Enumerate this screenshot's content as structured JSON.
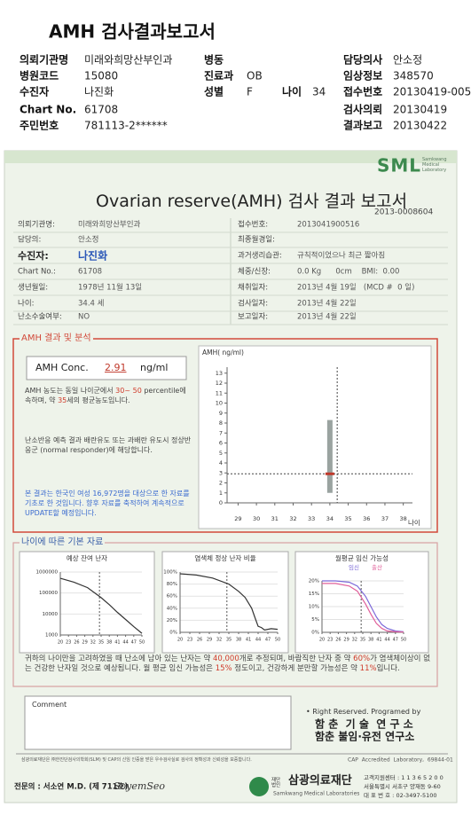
{
  "header": {
    "title": "AMH 검사결과보고서",
    "fields": [
      {
        "label": "의뢰기관명",
        "value": "미래와희망산부인과"
      },
      {
        "label": "병동"
      },
      {
        "label": "담당의사",
        "value": "안소정"
      },
      {
        "label": "병원코드",
        "value": "15080"
      },
      {
        "label": "진료과",
        "value": "OB"
      },
      {
        "label": "임상정보",
        "value": "348570"
      },
      {
        "label": "수진자",
        "value": "나진화"
      },
      {
        "label": "성별",
        "value": "F"
      },
      {
        "label": "나이",
        "value": "34"
      },
      {
        "label": "접수번호",
        "value": "20130419-005"
      },
      {
        "label": "Chart No.",
        "value": "61708"
      },
      {
        "label": "검사의뢰",
        "value": "20130419"
      },
      {
        "label": "주민번호",
        "value": "781113-2******"
      },
      {
        "label": "결과보고",
        "value": "20130422"
      }
    ]
  },
  "report": {
    "logo": "SML",
    "logo_sub": "Samkwang Medical Laboratory",
    "title": "Ovarian reserve(AMH) 검사 결과 보고서",
    "doc_no": "2013-0008604",
    "info_left": [
      {
        "label": "의뢰기관명:",
        "value": "미래와희망산부인과"
      },
      {
        "label": "담당의:",
        "value": "안소정"
      },
      {
        "label": "수진자:",
        "value": "나진화"
      },
      {
        "label": "Chart No.:",
        "value": "61708"
      },
      {
        "label": "생년월일:",
        "value": "1978년 11월 13일"
      },
      {
        "label": "나이:",
        "value": "34.4 세"
      },
      {
        "label": "난소수술여부:",
        "value": "NO"
      }
    ],
    "info_right": [
      {
        "label": "접수번호:",
        "value": "2013041900516"
      },
      {
        "label": "최종월경일:"
      },
      {
        "label": "과거생리습관:",
        "value": "규칙적이었으나 최근 짧아짐"
      },
      {
        "label": "체중/신장:",
        "value": "0.0 Kg      0cm    BMI:  0.00"
      },
      {
        "label": "채취일자:",
        "value": "2013년 4월 19일   (MCD #  0 일)"
      },
      {
        "label": "검사일자:",
        "value": "2013년 4월 22일"
      },
      {
        "label": "보고일자:",
        "value": "2013년 4월 22일"
      }
    ]
  },
  "amh": {
    "heading": "AMH 결과 및 분석",
    "conc_label": "AMH Conc.",
    "conc_value": "2.91",
    "conc_unit": "ng/ml",
    "text1": [
      "AMH 농도는 동일 나이군에서 ",
      "30~ 50",
      " percentile에 속하며, 약 ",
      "35",
      "세의 평균농도입니다."
    ],
    "text2": "난소반응 예측 결과 배란유도 또는 과배란 유도시 정상반응군 (normal responder)에 해당합니다.",
    "text3": "본 결과는 한국인 여성 16,972명을 대상으로 한 자료를 기초로 한 것입니다. 향후 자료를 축적하여 계속적으로 UPDATE할 예정입니다.",
    "chart": {
      "ylabel": "AMH( ng/ml)",
      "xlabel": "나이",
      "xlim": [
        28.4,
        38.5
      ],
      "xticks": [
        29,
        30,
        31,
        32,
        33,
        34,
        35,
        36,
        37,
        38
      ],
      "ylim": [
        0,
        13.6
      ],
      "yticks": [
        0,
        1,
        2,
        3,
        4,
        5,
        6,
        7,
        8,
        9,
        10,
        11,
        12,
        13
      ],
      "bar": {
        "x": 34,
        "low": 1.0,
        "high": 8.3,
        "color": "#9aa3a0"
      },
      "point": {
        "x": 34.4,
        "y": 2.91,
        "color": "#c0392b"
      }
    }
  },
  "basic": {
    "heading": "나이에 따른 기본 자료",
    "charts": [
      {
        "title": "예상 잔여 난자",
        "log_y": true,
        "xlim": [
          20,
          50
        ],
        "xticks": [
          20,
          23,
          26,
          29,
          32,
          35,
          38,
          41,
          44,
          47,
          50
        ],
        "ylim": [
          1000,
          1000000
        ],
        "yticks": [
          1000,
          10000,
          100000,
          1000000
        ],
        "marker_x": 34.4,
        "grid": true,
        "x": [
          20,
          25,
          30,
          35,
          38,
          41,
          44,
          47,
          50
        ],
        "series": [
          {
            "color": "#333333",
            "values": [
              500000,
              330000,
              180000,
              60000,
              28000,
              12000,
              5500,
              2500,
              1200
            ]
          }
        ]
      },
      {
        "title": "염색체 정상 난자 비율",
        "xlim": [
          20,
          50
        ],
        "xticks": [
          20,
          23,
          26,
          29,
          32,
          35,
          38,
          41,
          44,
          47,
          50
        ],
        "ylim": [
          0,
          100
        ],
        "yticks": [
          {
            "value": 0,
            "label": "0%"
          },
          {
            "value": 20,
            "label": "20%"
          },
          {
            "value": 40,
            "label": "40%"
          },
          {
            "value": 60,
            "label": "60%"
          },
          {
            "value": 80,
            "label": "80%"
          },
          {
            "value": 100,
            "label": "100%"
          }
        ],
        "marker_x": 34.4,
        "grid": true,
        "x": [
          20,
          25,
          30,
          35,
          38,
          40,
          42,
          43,
          44,
          45,
          46,
          48,
          50
        ],
        "series": [
          {
            "color": "#333333",
            "values": [
              97,
              95,
              90,
              80,
              68,
              58,
              40,
              25,
              10,
              8,
              4,
              6,
              5
            ]
          }
        ]
      },
      {
        "title": "월평균 임신 가능성",
        "xlim": [
          20,
          50
        ],
        "xticks": [
          20,
          23,
          26,
          29,
          32,
          35,
          38,
          41,
          44,
          47,
          50
        ],
        "ylim": [
          0,
          20
        ],
        "yticks": [
          {
            "value": 0,
            "label": "0%"
          },
          {
            "value": 5,
            "label": "5%"
          },
          {
            "value": 10,
            "label": "10%"
          },
          {
            "value": 15,
            "label": "15%"
          },
          {
            "value": 20,
            "label": "20%"
          }
        ],
        "marker_x": 34.4,
        "grid": true,
        "x": [
          20,
          25,
          30,
          33,
          36,
          38,
          40,
          42,
          44,
          47,
          50
        ],
        "series": [
          {
            "name": "임신",
            "color": "#7b68d8",
            "values": [
              20,
              20,
              19.5,
              18,
              14,
              10,
              6,
              3,
              1.5,
              0.5,
              0.2
            ]
          },
          {
            "name": "출산",
            "color": "#e0609a",
            "values": [
              19,
              19,
              18,
              16,
              11,
              7,
              3.5,
              1.5,
              0.5,
              0.2,
              0.1
            ]
          }
        ]
      }
    ],
    "summary": [
      "귀하의 나이만을 고려하였을 때 난소에 남아 있는 난자는 약 ",
      "40,000",
      "개로 추정되며, 바람직한 난자 중 약 ",
      "60%",
      "가 염색체이상이 없는 건강한 난자일 것으로 예상됩니다. 월 평균 임신 가능성은 ",
      "15%",
      " 정도이고, 건강하게 분만할 가능성은 약 ",
      "11%",
      "입니다."
    ]
  },
  "comment": {
    "label": "Comment"
  },
  "credits": {
    "line1": "• Right Reserved. Programed by",
    "line2": "함 춘  기 술  연 구 소",
    "line3": "함춘 불임·유전 연구소"
  },
  "footer": {
    "cert": "삼광의료재단은 ㈜한진단검사의학회(SLM) 및 CAP의 신임 인증을 받은 우수검사실로 검사의 정확성과 신뢰성을 보증합니다.",
    "cap": "CAP  Accredited  Laboratory,  69844-01",
    "doctor": "전문의 : 서소연 M.D. (제 711호)",
    "signature": "SoyemSeo",
    "org_prefix": "재단법인",
    "org": "삼광의료재단",
    "org_en": "Samkwang Medical Laboratories",
    "phone1": "고객지원센터 : 1 1 3 6 5 2 0 0",
    "address": "서울특별시 서초구 양재동 9-60",
    "phone2": "대 표 번 호 : 02-3497-5100"
  }
}
